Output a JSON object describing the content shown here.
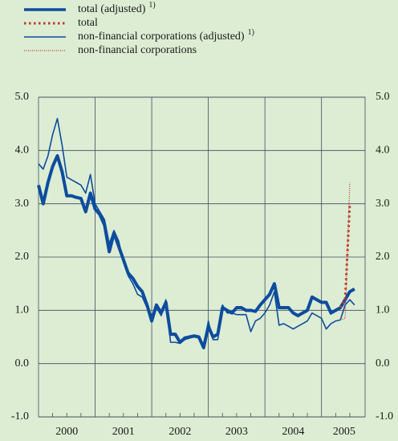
{
  "chart_data": {
    "type": "line",
    "x": [
      2000,
      2000.083,
      2000.167,
      2000.25,
      2000.333,
      2000.417,
      2000.5,
      2000.583,
      2000.667,
      2000.75,
      2000.833,
      2000.917,
      2001,
      2001.083,
      2001.167,
      2001.25,
      2001.333,
      2001.417,
      2001.5,
      2001.583,
      2001.667,
      2001.75,
      2001.833,
      2001.917,
      2002,
      2002.083,
      2002.167,
      2002.25,
      2002.333,
      2002.417,
      2002.5,
      2002.583,
      2002.667,
      2002.75,
      2002.833,
      2002.917,
      2003,
      2003.083,
      2003.167,
      2003.25,
      2003.333,
      2003.417,
      2003.5,
      2003.583,
      2003.667,
      2003.75,
      2003.833,
      2003.917,
      2004,
      2004.083,
      2004.167,
      2004.25,
      2004.333,
      2004.417,
      2004.5,
      2004.583,
      2004.667,
      2004.75,
      2004.833,
      2004.917,
      2005,
      2005.083,
      2005.167,
      2005.25,
      2005.333,
      2005.417,
      2005.5,
      2005.583
    ],
    "series": [
      {
        "name": "total (adjusted)",
        "note": "1)",
        "color": "#0d4c9e",
        "style": "solid",
        "width": 4,
        "values": [
          3.35,
          3.0,
          3.4,
          3.7,
          3.9,
          3.6,
          3.15,
          3.15,
          3.12,
          3.1,
          2.85,
          3.2,
          2.9,
          2.8,
          2.6,
          2.1,
          2.45,
          2.2,
          1.95,
          1.7,
          1.6,
          1.45,
          1.35,
          1.1,
          0.8,
          1.1,
          0.95,
          1.15,
          0.55,
          0.55,
          0.4,
          0.48,
          0.5,
          0.52,
          0.5,
          0.3,
          0.7,
          0.5,
          0.55,
          1.05,
          1.0,
          0.95,
          1.05,
          1.05,
          1.0,
          1.0,
          0.98,
          1.1,
          1.2,
          1.3,
          1.5,
          1.05,
          1.05,
          1.05,
          0.95,
          0.9,
          0.95,
          1.0,
          1.25,
          1.2,
          1.15,
          1.15,
          0.95,
          1.0,
          1.05,
          1.2,
          1.35,
          1.4
        ]
      },
      {
        "name": "total",
        "color": "#c0392b",
        "style": "dotted",
        "width": 3,
        "values": [
          null,
          null,
          null,
          null,
          null,
          null,
          null,
          null,
          null,
          null,
          null,
          null,
          null,
          null,
          null,
          null,
          null,
          null,
          null,
          null,
          null,
          null,
          null,
          null,
          null,
          null,
          null,
          null,
          null,
          null,
          null,
          null,
          null,
          null,
          null,
          null,
          null,
          null,
          null,
          null,
          null,
          null,
          null,
          null,
          null,
          null,
          null,
          null,
          null,
          null,
          null,
          null,
          null,
          null,
          null,
          null,
          null,
          null,
          null,
          null,
          null,
          null,
          null,
          null,
          1.05,
          1.2,
          3.0,
          null
        ]
      },
      {
        "name": "non-financial corporations (adjusted)",
        "note": "1)",
        "color": "#0d4c9e",
        "style": "solid",
        "width": 1.6,
        "values": [
          3.75,
          3.65,
          3.9,
          4.3,
          4.6,
          4.1,
          3.5,
          3.45,
          3.4,
          3.35,
          3.2,
          3.55,
          3.0,
          2.85,
          2.7,
          2.25,
          2.5,
          2.3,
          1.9,
          1.65,
          1.5,
          1.3,
          1.25,
          1.05,
          0.9,
          1.05,
          0.9,
          1.2,
          0.4,
          0.4,
          0.38,
          0.45,
          0.48,
          0.5,
          0.48,
          0.3,
          0.8,
          0.45,
          0.45,
          1.1,
          0.95,
          0.95,
          0.92,
          0.92,
          0.92,
          0.6,
          0.8,
          0.85,
          0.95,
          1.1,
          1.35,
          0.72,
          0.75,
          0.7,
          0.65,
          0.7,
          0.75,
          0.8,
          0.95,
          0.9,
          0.85,
          0.65,
          0.75,
          0.8,
          0.82,
          1.1,
          1.2,
          1.1
        ]
      },
      {
        "name": "non-financial corporations",
        "color": "#c0392b",
        "style": "fine-dotted",
        "width": 1.2,
        "values": [
          null,
          null,
          null,
          null,
          null,
          null,
          null,
          null,
          null,
          null,
          null,
          null,
          null,
          null,
          null,
          null,
          null,
          null,
          null,
          null,
          null,
          null,
          null,
          null,
          null,
          null,
          null,
          null,
          null,
          null,
          null,
          null,
          null,
          null,
          null,
          null,
          null,
          null,
          null,
          null,
          null,
          null,
          null,
          null,
          null,
          null,
          null,
          null,
          null,
          null,
          null,
          null,
          null,
          null,
          null,
          null,
          null,
          null,
          null,
          null,
          null,
          null,
          null,
          null,
          0.82,
          0.85,
          3.4,
          null
        ]
      }
    ],
    "xlim": [
      2000,
      2005.77
    ],
    "xticks": [
      {
        "value": 2000.5,
        "label": "2000"
      },
      {
        "value": 2001.5,
        "label": "2001"
      },
      {
        "value": 2002.5,
        "label": "2002"
      },
      {
        "value": 2003.5,
        "label": "2003"
      },
      {
        "value": 2004.5,
        "label": "2004"
      },
      {
        "value": 2005.4,
        "label": "2005"
      }
    ],
    "xgrid": [
      2001,
      2002,
      2003,
      2004,
      2005
    ],
    "xminor": [
      2000.25,
      2000.5,
      2000.75,
      2001.25,
      2001.5,
      2001.75,
      2002.25,
      2002.5,
      2002.75,
      2003.25,
      2003.5,
      2003.75,
      2004.25,
      2004.5,
      2004.75,
      2005.25,
      2005.5
    ],
    "ylim": [
      -1,
      5
    ],
    "yticks": [
      {
        "value": -1,
        "label": "-1.0"
      },
      {
        "value": 0,
        "label": "0.0"
      },
      {
        "value": 1,
        "label": "1.0"
      },
      {
        "value": 2,
        "label": "2.0"
      },
      {
        "value": 3,
        "label": "3.0"
      },
      {
        "value": 4,
        "label": "4.0"
      },
      {
        "value": 5,
        "label": "5.0"
      }
    ],
    "grid": true,
    "legend": "top-left"
  }
}
